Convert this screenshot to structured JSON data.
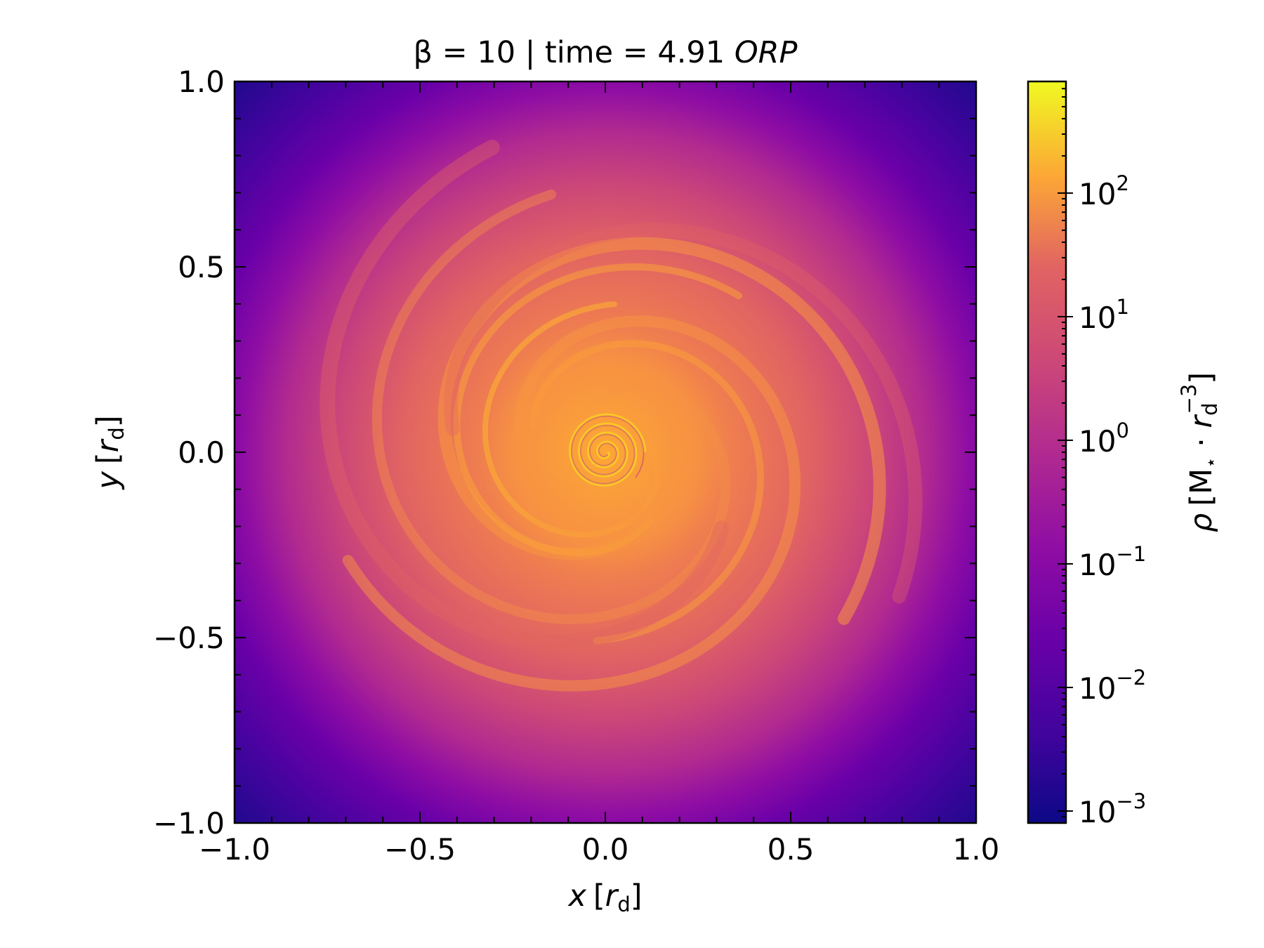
{
  "chart_data": {
    "type": "heatmap",
    "title": {
      "prefix": "β = 10 | time = 4.91 ",
      "italic": "ORP"
    },
    "xlabel": {
      "var": "x",
      "unit_open": "[",
      "unit_var": "r",
      "unit_sub": "d",
      "unit_close": "]"
    },
    "ylabel": {
      "var": "y",
      "unit_open": "[",
      "unit_var": "r",
      "unit_sub": "d",
      "unit_close": "]"
    },
    "xlim": [
      -1.0,
      1.0
    ],
    "ylim": [
      -1.0,
      1.0
    ],
    "xticks": [
      -1.0,
      -0.5,
      0.0,
      0.5,
      1.0
    ],
    "xtick_labels": [
      "−1.0",
      "−0.5",
      "0.0",
      "0.5",
      "1.0"
    ],
    "yticks": [
      -1.0,
      -0.5,
      0.0,
      0.5,
      1.0
    ],
    "ytick_labels": [
      "−1.0",
      "−0.5",
      "0.0",
      "0.5",
      "1.0"
    ],
    "colormap": "plasma",
    "colorbar": {
      "scale": "log",
      "range": [
        0.0008,
        800
      ],
      "ticks": [
        0.001,
        0.01,
        0.1,
        1,
        10,
        100
      ],
      "tick_labels": [
        {
          "base": "10",
          "exp": "−3"
        },
        {
          "base": "10",
          "exp": "−2"
        },
        {
          "base": "10",
          "exp": "−1"
        },
        {
          "base": "10",
          "exp": "0"
        },
        {
          "base": "10",
          "exp": "1"
        },
        {
          "base": "10",
          "exp": "2"
        }
      ],
      "label": {
        "rho": "ρ",
        "open": "[M",
        "star": "⋆",
        "dot": " · ",
        "r": "r",
        "sub": "d",
        "sup": "−3",
        "close": "]"
      }
    },
    "grid": false,
    "description_colors": {
      "min": "#0d0887",
      "mid": "#cc4778",
      "max": "#f0f921"
    }
  }
}
